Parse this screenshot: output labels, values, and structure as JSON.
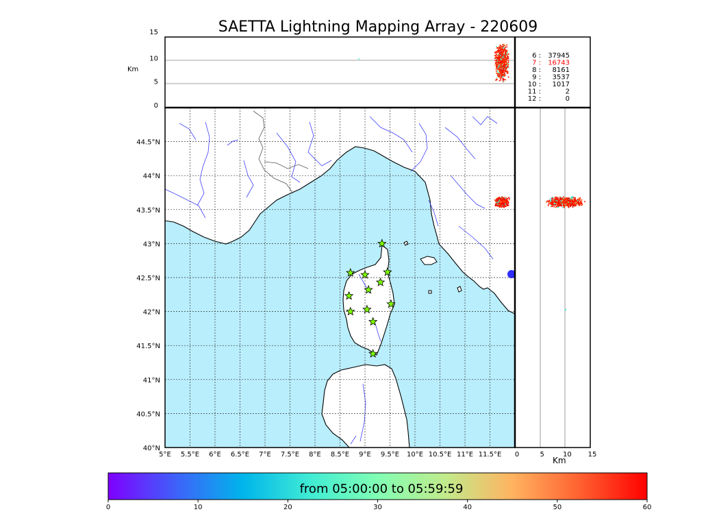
{
  "title": "SAETTA Lightning Mapping Array - 220609",
  "altitude_axis_label": "Km",
  "altitude_ticks": [
    "15",
    "10",
    "5",
    "0"
  ],
  "lon_ticks": [
    "5°E",
    "5.5°E",
    "6°E",
    "6.5°E",
    "7°E",
    "7.5°E",
    "8°E",
    "8.5°E",
    "9°E",
    "9.5°E",
    "10°E",
    "10.5°E",
    "11°E",
    "11.5°E"
  ],
  "lat_ticks": [
    "44.5°N",
    "44°N",
    "43.5°N",
    "43°N",
    "42.5°N",
    "42°N",
    "41.5°N",
    "41°N",
    "40.5°N",
    "40°N"
  ],
  "alt_x_ticks": [
    "0",
    "5",
    "10",
    "15"
  ],
  "stations_table": [
    {
      "label": "6  :",
      "count": "37945",
      "color": "#000000"
    },
    {
      "label": "7  :",
      "count": "16743",
      "color": "#ff0000"
    },
    {
      "label": "8  :",
      "count": "8161",
      "color": "#000000"
    },
    {
      "label": "9  :",
      "count": "3537",
      "color": "#000000"
    },
    {
      "label": "10  :",
      "count": "1017",
      "color": "#000000"
    },
    {
      "label": "11  :",
      "count": "2",
      "color": "#000000"
    },
    {
      "label": "12  :",
      "count": "0",
      "color": "#000000"
    }
  ],
  "colorbar": {
    "label": "from 05:00:00 to 05:59:59",
    "ticks": [
      "0",
      "10",
      "20",
      "30",
      "40",
      "50",
      "60"
    ],
    "colors": [
      "#7f00ff",
      "#3f61fa",
      "#00b5eb",
      "#40ecd4",
      "#81feb4",
      "#c1eb8c",
      "#ffb360",
      "#ff6130",
      "#ff0000"
    ]
  },
  "colors": {
    "sea": "#b9eefc",
    "land": "#ffffff",
    "river": "#4040ff",
    "station": "#7fff00"
  },
  "stations": [
    {
      "lon": 9.34,
      "lat": 43.0
    },
    {
      "lon": 8.71,
      "lat": 42.57
    },
    {
      "lon": 9.0,
      "lat": 42.54
    },
    {
      "lon": 9.45,
      "lat": 42.58
    },
    {
      "lon": 9.31,
      "lat": 42.43
    },
    {
      "lon": 9.07,
      "lat": 42.32
    },
    {
      "lon": 8.68,
      "lat": 42.23
    },
    {
      "lon": 9.52,
      "lat": 42.11
    },
    {
      "lon": 8.71,
      "lat": 42.0
    },
    {
      "lon": 9.04,
      "lat": 42.03
    },
    {
      "lon": 9.16,
      "lat": 41.85
    },
    {
      "lon": 9.16,
      "lat": 41.38
    }
  ]
}
